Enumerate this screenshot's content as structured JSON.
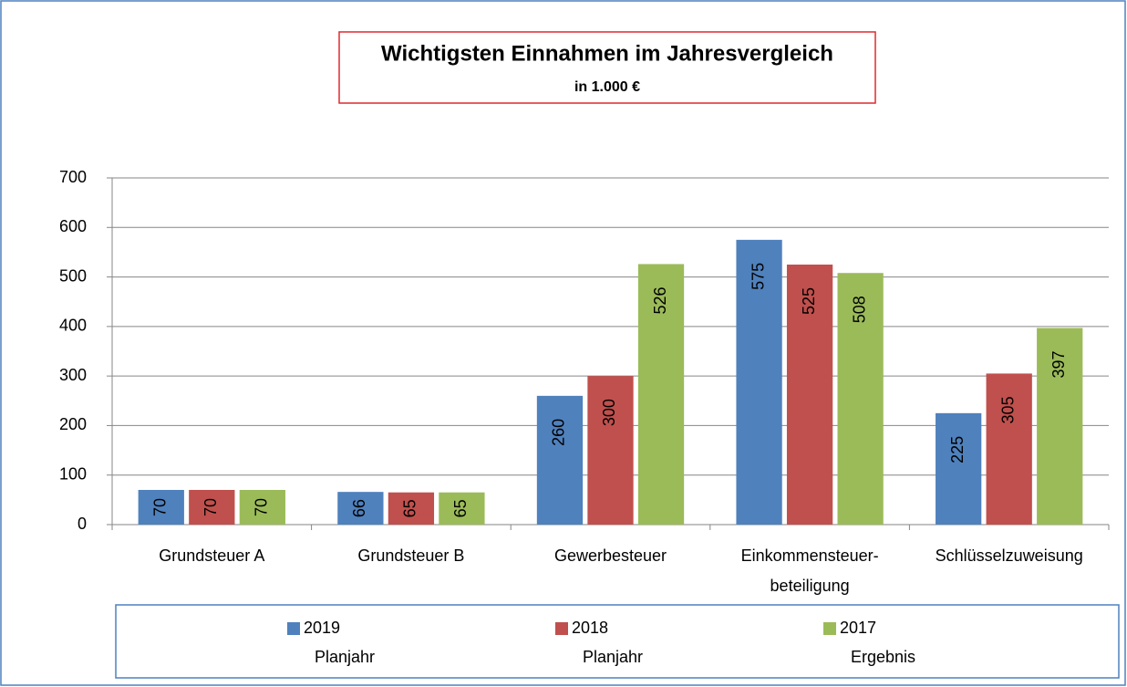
{
  "chart_data": {
    "type": "bar",
    "title": "Wichtigsten Einnahmen im Jahresvergleich",
    "subtitle": "in 1.000 €",
    "categories": [
      "Grundsteuer A",
      "Grundsteuer B",
      "Gewerbesteuer",
      "Einkommensteuer-beteiligung",
      "Schlüsselzuweisung"
    ],
    "series": [
      {
        "name": "2019 Planjahr",
        "color": "#4f81bd",
        "values": [
          70,
          66,
          260,
          575,
          225
        ]
      },
      {
        "name": "2018 Planjahr",
        "color": "#c0504d",
        "values": [
          70,
          65,
          300,
          525,
          305
        ]
      },
      {
        "name": "2017 Ergebnis",
        "color": "#9bbb59",
        "values": [
          70,
          65,
          526,
          508,
          397
        ]
      }
    ],
    "ylim": [
      0,
      700
    ],
    "yticks": [
      0,
      100,
      200,
      300,
      400,
      500,
      600,
      700
    ],
    "grid": true,
    "legend": "bottom"
  }
}
